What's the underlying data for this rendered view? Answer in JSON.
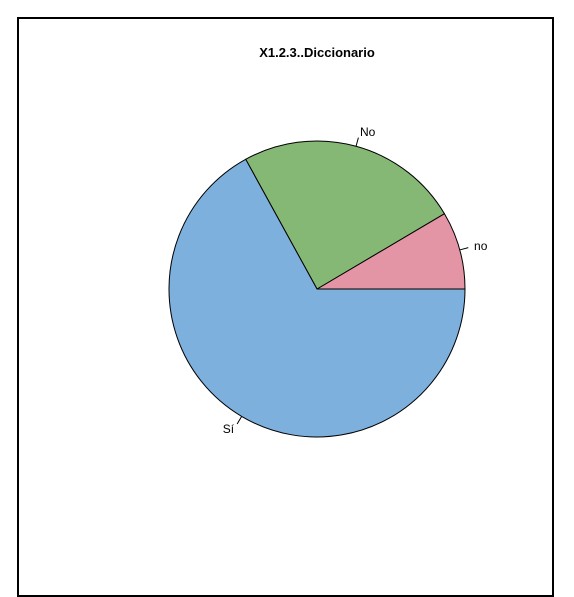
{
  "chart_data": {
    "type": "pie",
    "title": "X1.2.3..Diccionario",
    "start_angle_deg": 0,
    "direction": "counterclockwise",
    "slices": [
      {
        "label": "no",
        "value": 8.5,
        "color": "#E495A5"
      },
      {
        "label": "No",
        "value": 24.5,
        "color": "#86B875"
      },
      {
        "label": "Sí",
        "value": 67.0,
        "color": "#7DB0DD"
      }
    ]
  }
}
